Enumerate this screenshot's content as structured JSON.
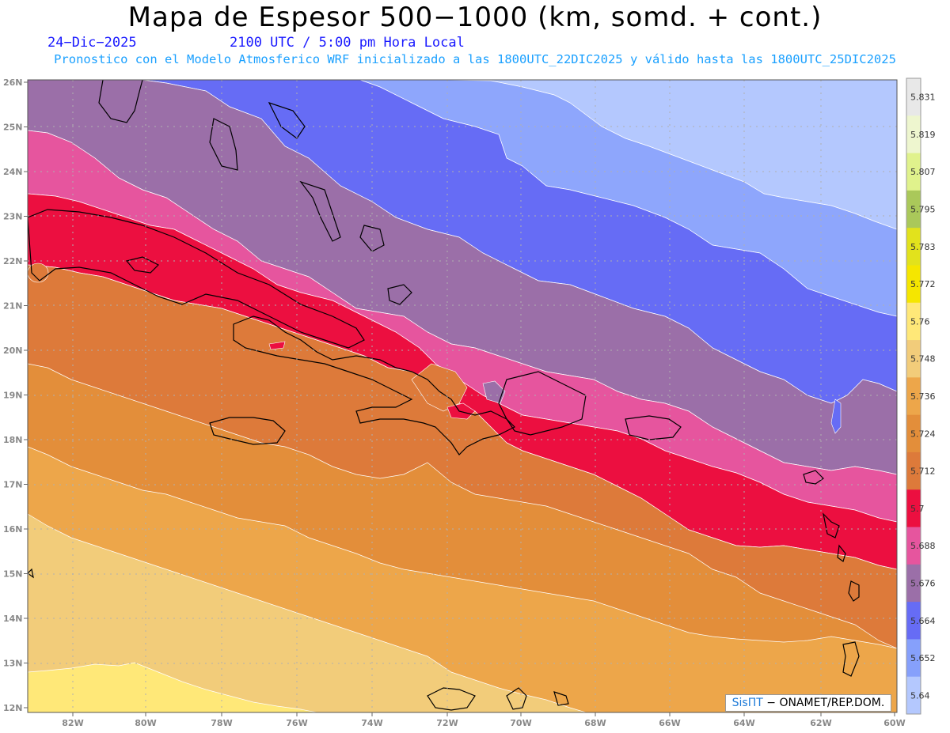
{
  "title": "Mapa de Espesor 500−1000 (km, somd. + cont.)",
  "date": "24−Dic−2025",
  "time": "2100 UTC / 5:00 pm Hora Local",
  "forecast_note": "Pronostico con el Modelo Atmosferico WRF inicializado a las 1800UTC_22DIC2025 y válido hasta las  1800UTC_25DIC2025",
  "credit": {
    "brand": "SisПT",
    "org": " − ONAMET/REP.DOM."
  },
  "lat_labels": [
    "26N",
    "25N",
    "24N",
    "23N",
    "22N",
    "21N",
    "20N",
    "19N",
    "18N",
    "17N",
    "16N",
    "15N",
    "14N",
    "13N",
    "12N"
  ],
  "lon_labels": [
    "82W",
    "80W",
    "78W",
    "76W",
    "74W",
    "72W",
    "70W",
    "68W",
    "66W",
    "64W",
    "62W",
    "60W"
  ],
  "legend": {
    "labels": [
      "5.831",
      "5.819",
      "5.807",
      "5.795",
      "5.783",
      "5.772",
      "5.76",
      "5.748",
      "5.736",
      "5.724",
      "5.712",
      "5.7",
      "5.688",
      "5.676",
      "5.664",
      "5.652",
      "5.64"
    ],
    "colors": [
      "#e8e8e8",
      "#eef6cf",
      "#e0f28c",
      "#aac85a",
      "#e2e21c",
      "#f5e600",
      "#ffe878",
      "#f2cc7a",
      "#eda64a",
      "#e38e3a",
      "#dd7a3a",
      "#ec0f40",
      "#e6559e",
      "#9b6fa8",
      "#666cf5",
      "#86a0fb",
      "#b4c8fe"
    ]
  },
  "bands": [
    {
      "name": "5.64",
      "color": "#b4c8fe"
    },
    {
      "name": "5.652",
      "color": "#8ea6fc"
    },
    {
      "name": "5.664",
      "color": "#666cf5"
    },
    {
      "name": "5.676",
      "color": "#9b6fa8"
    },
    {
      "name": "5.688",
      "color": "#e6559e"
    },
    {
      "name": "5.7",
      "color": "#ec0f40"
    },
    {
      "name": "5.712",
      "color": "#dd7a3a"
    },
    {
      "name": "5.724",
      "color": "#e38e3a"
    },
    {
      "name": "5.736",
      "color": "#eda64a"
    },
    {
      "name": "5.748",
      "color": "#f2cc7a"
    },
    {
      "name": "5.76",
      "color": "#ffe878"
    }
  ]
}
